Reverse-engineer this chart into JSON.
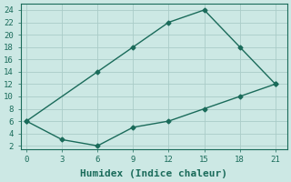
{
  "series1_x": [
    0,
    6,
    9,
    12,
    15,
    18,
    21
  ],
  "series1_y": [
    6,
    14,
    18,
    22,
    24,
    18,
    12
  ],
  "series2_x": [
    0,
    3,
    6,
    9,
    12,
    15,
    18,
    21
  ],
  "series2_y": [
    6,
    3,
    2,
    5,
    6,
    8,
    10,
    12
  ],
  "line_color": "#1a6b5a",
  "bg_color": "#cce8e4",
  "grid_color": "#aaccc8",
  "xlabel": "Humidex (Indice chaleur)",
  "xlim": [
    -0.5,
    22
  ],
  "ylim": [
    1.5,
    25
  ],
  "xticks": [
    0,
    3,
    6,
    9,
    12,
    15,
    18,
    21
  ],
  "yticks": [
    2,
    4,
    6,
    8,
    10,
    12,
    14,
    16,
    18,
    20,
    22,
    24
  ],
  "marker": "D",
  "markersize": 2.5,
  "linewidth": 1.0,
  "xlabel_fontsize": 8,
  "tick_fontsize": 6.5
}
